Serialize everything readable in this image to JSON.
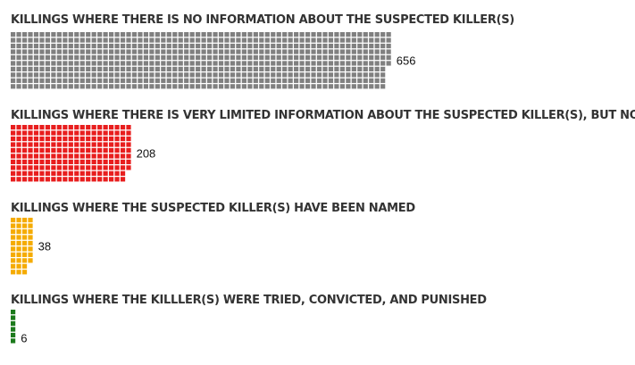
{
  "chart_data": {
    "type": "waffle",
    "title": "",
    "categories": [
      {
        "label": "KILLINGS WHERE THERE IS NO INFORMATION ABOUT THE SUSPECTED KILLER(S)",
        "value": 656,
        "value_label": "656",
        "color": "#808080"
      },
      {
        "label": "KILLINGS WHERE THERE IS VERY LIMITED INFORMATION ABOUT THE SUSPECTED KILLER(S), BUT NO NAME",
        "value": 208,
        "value_label": "208",
        "color": "#e81e1e"
      },
      {
        "label": "KILLINGS WHERE THE SUSPECTED KILLER(S) HAVE BEEN NAMED",
        "value": 38,
        "value_label": "38",
        "color": "#f5ab00"
      },
      {
        "label": "KILLINGS WHERE THE KILLLER(S) WERE TRIED, CONVICTED, AND PUNISHED",
        "value": 6,
        "value_label": "6",
        "color": "#1c7a1c"
      }
    ]
  }
}
